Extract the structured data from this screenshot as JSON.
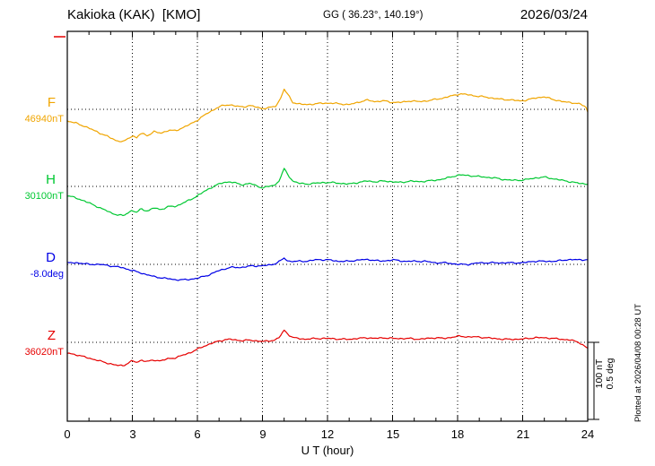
{
  "header": {
    "station": "Kakioka (KAK)  [KMO]",
    "coords": "GG ( 36.23°, 140.19°)",
    "date": "2026/03/24"
  },
  "axis": {
    "xlabel": "U T (hour)",
    "ticks": [
      "0",
      "3",
      "6",
      "9",
      "12",
      "15",
      "18",
      "21",
      "24"
    ]
  },
  "left_labels": [
    {
      "name": "F",
      "value": "46940nT"
    },
    {
      "name": "H",
      "value": "30100nT"
    },
    {
      "name": "D",
      "value": "-8.0deg"
    },
    {
      "name": "Z",
      "value": "36020nT"
    }
  ],
  "scale_note": {
    "line1": "100 nT",
    "line2": "0.5 deg"
  },
  "plotted_note": "Plotted at 2026/04/08 00:28 UT",
  "colors": {
    "frame": "#000000",
    "grid": "#000000",
    "marker": "#e60000"
  },
  "chart_data": {
    "type": "line",
    "title": "Kakioka (KAK) [KMO] magnetogram",
    "subtitle": "GG ( 36.23°, 140.19°)",
    "date": "2026/03/24",
    "xlabel": "U T (hour)",
    "x_range": [
      0,
      24
    ],
    "x_ticks": [
      0,
      3,
      6,
      9,
      12,
      15,
      18,
      21,
      24
    ],
    "scale": {
      "nT_per_div": 100,
      "deg_per_div": 0.5
    },
    "series": [
      {
        "name": "F",
        "unit": "nT",
        "baseline": 46940,
        "color": "#f0a500",
        "points": [
          [
            0,
            -15
          ],
          [
            0.4,
            -18
          ],
          [
            0.8,
            -22
          ],
          [
            1.2,
            -27
          ],
          [
            1.6,
            -32
          ],
          [
            2.0,
            -37
          ],
          [
            2.3,
            -41
          ],
          [
            2.6,
            -42
          ],
          [
            2.8,
            -38
          ],
          [
            3.0,
            -34
          ],
          [
            3.2,
            -37
          ],
          [
            3.4,
            -31
          ],
          [
            3.7,
            -34
          ],
          [
            4.0,
            -29
          ],
          [
            4.3,
            -31
          ],
          [
            4.7,
            -27
          ],
          [
            5.0,
            -28
          ],
          [
            5.3,
            -24
          ],
          [
            5.7,
            -19
          ],
          [
            6.0,
            -14
          ],
          [
            6.3,
            -8
          ],
          [
            6.6,
            -3
          ],
          [
            6.9,
            2
          ],
          [
            7.2,
            5
          ],
          [
            7.5,
            6
          ],
          [
            7.8,
            4
          ],
          [
            8.1,
            3
          ],
          [
            8.4,
            5
          ],
          [
            8.7,
            3
          ],
          [
            9.0,
            1
          ],
          [
            9.3,
            2
          ],
          [
            9.6,
            4
          ],
          [
            9.8,
            12
          ],
          [
            10.0,
            26
          ],
          [
            10.2,
            18
          ],
          [
            10.4,
            9
          ],
          [
            10.7,
            7
          ],
          [
            11.0,
            6
          ],
          [
            11.4,
            7
          ],
          [
            11.8,
            8
          ],
          [
            12.2,
            8
          ],
          [
            12.6,
            7
          ],
          [
            13.0,
            6
          ],
          [
            13.4,
            9
          ],
          [
            13.8,
            12
          ],
          [
            14.2,
            10
          ],
          [
            14.6,
            11
          ],
          [
            15.0,
            9
          ],
          [
            15.4,
            9
          ],
          [
            15.8,
            11
          ],
          [
            16.2,
            10
          ],
          [
            16.6,
            11
          ],
          [
            17.0,
            13
          ],
          [
            17.4,
            15
          ],
          [
            17.8,
            18
          ],
          [
            18.1,
            20
          ],
          [
            18.5,
            19
          ],
          [
            18.9,
            17
          ],
          [
            19.3,
            16
          ],
          [
            19.7,
            14
          ],
          [
            20.1,
            13
          ],
          [
            20.5,
            12
          ],
          [
            20.9,
            11
          ],
          [
            21.2,
            12
          ],
          [
            21.6,
            15
          ],
          [
            22.0,
            16
          ],
          [
            22.4,
            13
          ],
          [
            22.8,
            10
          ],
          [
            23.2,
            9
          ],
          [
            23.6,
            7
          ],
          [
            23.9,
            4
          ],
          [
            24,
            -3
          ]
        ]
      },
      {
        "name": "H",
        "unit": "nT",
        "baseline": 30100,
        "color": "#00c832",
        "points": [
          [
            0,
            -12
          ],
          [
            0.4,
            -15
          ],
          [
            0.8,
            -19
          ],
          [
            1.2,
            -24
          ],
          [
            1.6,
            -29
          ],
          [
            2.0,
            -34
          ],
          [
            2.3,
            -37
          ],
          [
            2.6,
            -38
          ],
          [
            2.8,
            -34
          ],
          [
            3.0,
            -31
          ],
          [
            3.2,
            -34
          ],
          [
            3.4,
            -29
          ],
          [
            3.7,
            -32
          ],
          [
            4.0,
            -28
          ],
          [
            4.3,
            -30
          ],
          [
            4.7,
            -26
          ],
          [
            5.0,
            -26
          ],
          [
            5.3,
            -22
          ],
          [
            5.7,
            -17
          ],
          [
            6.0,
            -12
          ],
          [
            6.3,
            -7
          ],
          [
            6.6,
            -2
          ],
          [
            6.9,
            2
          ],
          [
            7.2,
            5
          ],
          [
            7.5,
            6
          ],
          [
            7.8,
            4
          ],
          [
            8.1,
            2
          ],
          [
            8.4,
            4
          ],
          [
            8.7,
            1
          ],
          [
            9.0,
            -2
          ],
          [
            9.3,
            0
          ],
          [
            9.6,
            2
          ],
          [
            9.8,
            9
          ],
          [
            10.0,
            23
          ],
          [
            10.2,
            14
          ],
          [
            10.4,
            7
          ],
          [
            10.7,
            4
          ],
          [
            11.0,
            3
          ],
          [
            11.4,
            4
          ],
          [
            11.8,
            5
          ],
          [
            12.2,
            5
          ],
          [
            12.6,
            4
          ],
          [
            13.0,
            3
          ],
          [
            13.4,
            5
          ],
          [
            13.8,
            7
          ],
          [
            14.2,
            6
          ],
          [
            14.6,
            7
          ],
          [
            15.0,
            6
          ],
          [
            15.4,
            5
          ],
          [
            15.8,
            7
          ],
          [
            16.2,
            6
          ],
          [
            16.6,
            7
          ],
          [
            17.0,
            8
          ],
          [
            17.4,
            10
          ],
          [
            17.8,
            13
          ],
          [
            18.1,
            15
          ],
          [
            18.5,
            14
          ],
          [
            18.9,
            13
          ],
          [
            19.3,
            12
          ],
          [
            19.7,
            11
          ],
          [
            20.1,
            9
          ],
          [
            20.5,
            8
          ],
          [
            20.9,
            8
          ],
          [
            21.2,
            9
          ],
          [
            21.6,
            11
          ],
          [
            22.0,
            12
          ],
          [
            22.4,
            10
          ],
          [
            22.8,
            8
          ],
          [
            23.2,
            6
          ],
          [
            23.6,
            4
          ],
          [
            24,
            3
          ]
        ]
      },
      {
        "name": "D",
        "unit": "deg",
        "baseline": -8.0,
        "color": "#0000e6",
        "points": [
          [
            0,
            0.01
          ],
          [
            0.5,
            0.01
          ],
          [
            1.0,
            0.0
          ],
          [
            1.5,
            0.0
          ],
          [
            2.0,
            -0.01
          ],
          [
            2.5,
            -0.02
          ],
          [
            3.0,
            -0.04
          ],
          [
            3.5,
            -0.06
          ],
          [
            4.0,
            -0.08
          ],
          [
            4.5,
            -0.09
          ],
          [
            5.0,
            -0.1
          ],
          [
            5.5,
            -0.1
          ],
          [
            6.0,
            -0.09
          ],
          [
            6.5,
            -0.07
          ],
          [
            7.0,
            -0.04
          ],
          [
            7.5,
            -0.02
          ],
          [
            8.0,
            -0.02
          ],
          [
            8.5,
            -0.01
          ],
          [
            9.0,
            -0.01
          ],
          [
            9.5,
            0.0
          ],
          [
            9.8,
            0.02
          ],
          [
            10.0,
            0.04
          ],
          [
            10.2,
            0.02
          ],
          [
            10.5,
            0.02
          ],
          [
            11.0,
            0.02
          ],
          [
            11.5,
            0.03
          ],
          [
            12.0,
            0.03
          ],
          [
            12.5,
            0.02
          ],
          [
            13.0,
            0.02
          ],
          [
            13.5,
            0.03
          ],
          [
            14.0,
            0.03
          ],
          [
            14.5,
            0.02
          ],
          [
            15.0,
            0.03
          ],
          [
            15.5,
            0.02
          ],
          [
            16.0,
            0.02
          ],
          [
            16.5,
            0.02
          ],
          [
            17.0,
            0.01
          ],
          [
            17.5,
            0.01
          ],
          [
            18.0,
            0.0
          ],
          [
            18.5,
            0.0
          ],
          [
            19.0,
            0.01
          ],
          [
            19.5,
            0.01
          ],
          [
            20.0,
            0.01
          ],
          [
            20.5,
            0.01
          ],
          [
            21.0,
            0.01
          ],
          [
            21.5,
            0.02
          ],
          [
            22.0,
            0.02
          ],
          [
            22.5,
            0.02
          ],
          [
            23.0,
            0.03
          ],
          [
            23.5,
            0.03
          ],
          [
            24,
            0.03
          ]
        ]
      },
      {
        "name": "Z",
        "unit": "nT",
        "baseline": 36020,
        "color": "#e60000",
        "points": [
          [
            0,
            -14
          ],
          [
            0.4,
            -16
          ],
          [
            0.8,
            -19
          ],
          [
            1.2,
            -22
          ],
          [
            1.6,
            -25
          ],
          [
            2.0,
            -28
          ],
          [
            2.3,
            -30
          ],
          [
            2.6,
            -30
          ],
          [
            2.8,
            -27
          ],
          [
            3.0,
            -24
          ],
          [
            3.2,
            -26
          ],
          [
            3.4,
            -23
          ],
          [
            3.7,
            -25
          ],
          [
            4.0,
            -23
          ],
          [
            4.3,
            -24
          ],
          [
            4.7,
            -21
          ],
          [
            5.0,
            -20
          ],
          [
            5.3,
            -17
          ],
          [
            5.7,
            -13
          ],
          [
            6.0,
            -9
          ],
          [
            6.3,
            -5
          ],
          [
            6.6,
            -2
          ],
          [
            6.9,
            1
          ],
          [
            7.2,
            3
          ],
          [
            7.5,
            4
          ],
          [
            7.8,
            3
          ],
          [
            8.1,
            2
          ],
          [
            8.4,
            3
          ],
          [
            8.7,
            2
          ],
          [
            9.0,
            1
          ],
          [
            9.3,
            2
          ],
          [
            9.6,
            3
          ],
          [
            9.8,
            7
          ],
          [
            10.0,
            16
          ],
          [
            10.2,
            10
          ],
          [
            10.4,
            6
          ],
          [
            10.7,
            5
          ],
          [
            11.0,
            4
          ],
          [
            11.4,
            5
          ],
          [
            11.8,
            5
          ],
          [
            12.2,
            5
          ],
          [
            12.6,
            4
          ],
          [
            13.0,
            4
          ],
          [
            13.4,
            5
          ],
          [
            13.8,
            6
          ],
          [
            14.2,
            5
          ],
          [
            14.6,
            6
          ],
          [
            15.0,
            5
          ],
          [
            15.4,
            5
          ],
          [
            15.8,
            5
          ],
          [
            16.2,
            4
          ],
          [
            16.6,
            5
          ],
          [
            17.0,
            6
          ],
          [
            17.4,
            5
          ],
          [
            17.8,
            7
          ],
          [
            18.1,
            8
          ],
          [
            18.5,
            7
          ],
          [
            18.9,
            7
          ],
          [
            19.3,
            6
          ],
          [
            19.7,
            5
          ],
          [
            20.1,
            4
          ],
          [
            20.5,
            4
          ],
          [
            20.9,
            4
          ],
          [
            21.2,
            5
          ],
          [
            21.6,
            6
          ],
          [
            22.0,
            6
          ],
          [
            22.4,
            5
          ],
          [
            22.8,
            4
          ],
          [
            23.2,
            3
          ],
          [
            23.6,
            0
          ],
          [
            24,
            -8
          ]
        ]
      }
    ]
  }
}
